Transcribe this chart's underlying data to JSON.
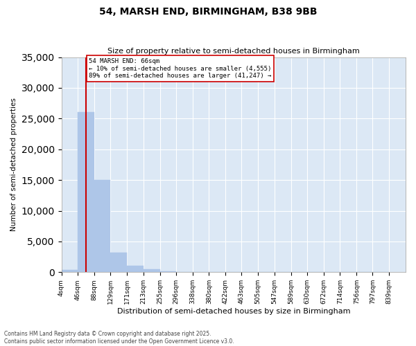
{
  "title": "54, MARSH END, BIRMINGHAM, B38 9BB",
  "subtitle": "Size of property relative to semi-detached houses in Birmingham",
  "xlabel": "Distribution of semi-detached houses by size in Birmingham",
  "ylabel": "Number of semi-detached properties",
  "property_label": "54 MARSH END: 66sqm",
  "pct_smaller": 10,
  "count_smaller": 4555,
  "pct_larger": 89,
  "count_larger": 41247,
  "bin_labels": [
    "4sqm",
    "46sqm",
    "88sqm",
    "129sqm",
    "171sqm",
    "213sqm",
    "255sqm",
    "296sqm",
    "338sqm",
    "380sqm",
    "422sqm",
    "463sqm",
    "505sqm",
    "547sqm",
    "589sqm",
    "630sqm",
    "672sqm",
    "714sqm",
    "756sqm",
    "797sqm",
    "839sqm"
  ],
  "bin_edges": [
    4,
    46,
    88,
    129,
    171,
    213,
    255,
    296,
    338,
    380,
    422,
    463,
    505,
    547,
    589,
    630,
    672,
    714,
    756,
    797,
    839
  ],
  "bar_values": [
    400,
    26000,
    15000,
    3200,
    1000,
    500,
    150,
    80,
    30,
    10,
    5,
    3,
    2,
    1,
    1,
    0,
    0,
    0,
    0,
    0
  ],
  "bar_color": "#aec6e8",
  "bar_edgecolor": "#aec6e8",
  "vline_color": "#cc0000",
  "vline_x": 66,
  "annotation_box_edgecolor": "#cc0000",
  "background_color": "#ffffff",
  "axes_facecolor": "#dce8f5",
  "grid_color": "#ffffff",
  "ylim": [
    0,
    35000
  ],
  "yticks": [
    0,
    5000,
    10000,
    15000,
    20000,
    25000,
    30000,
    35000
  ],
  "footer_line1": "Contains HM Land Registry data © Crown copyright and database right 2025.",
  "footer_line2": "Contains public sector information licensed under the Open Government Licence v3.0."
}
